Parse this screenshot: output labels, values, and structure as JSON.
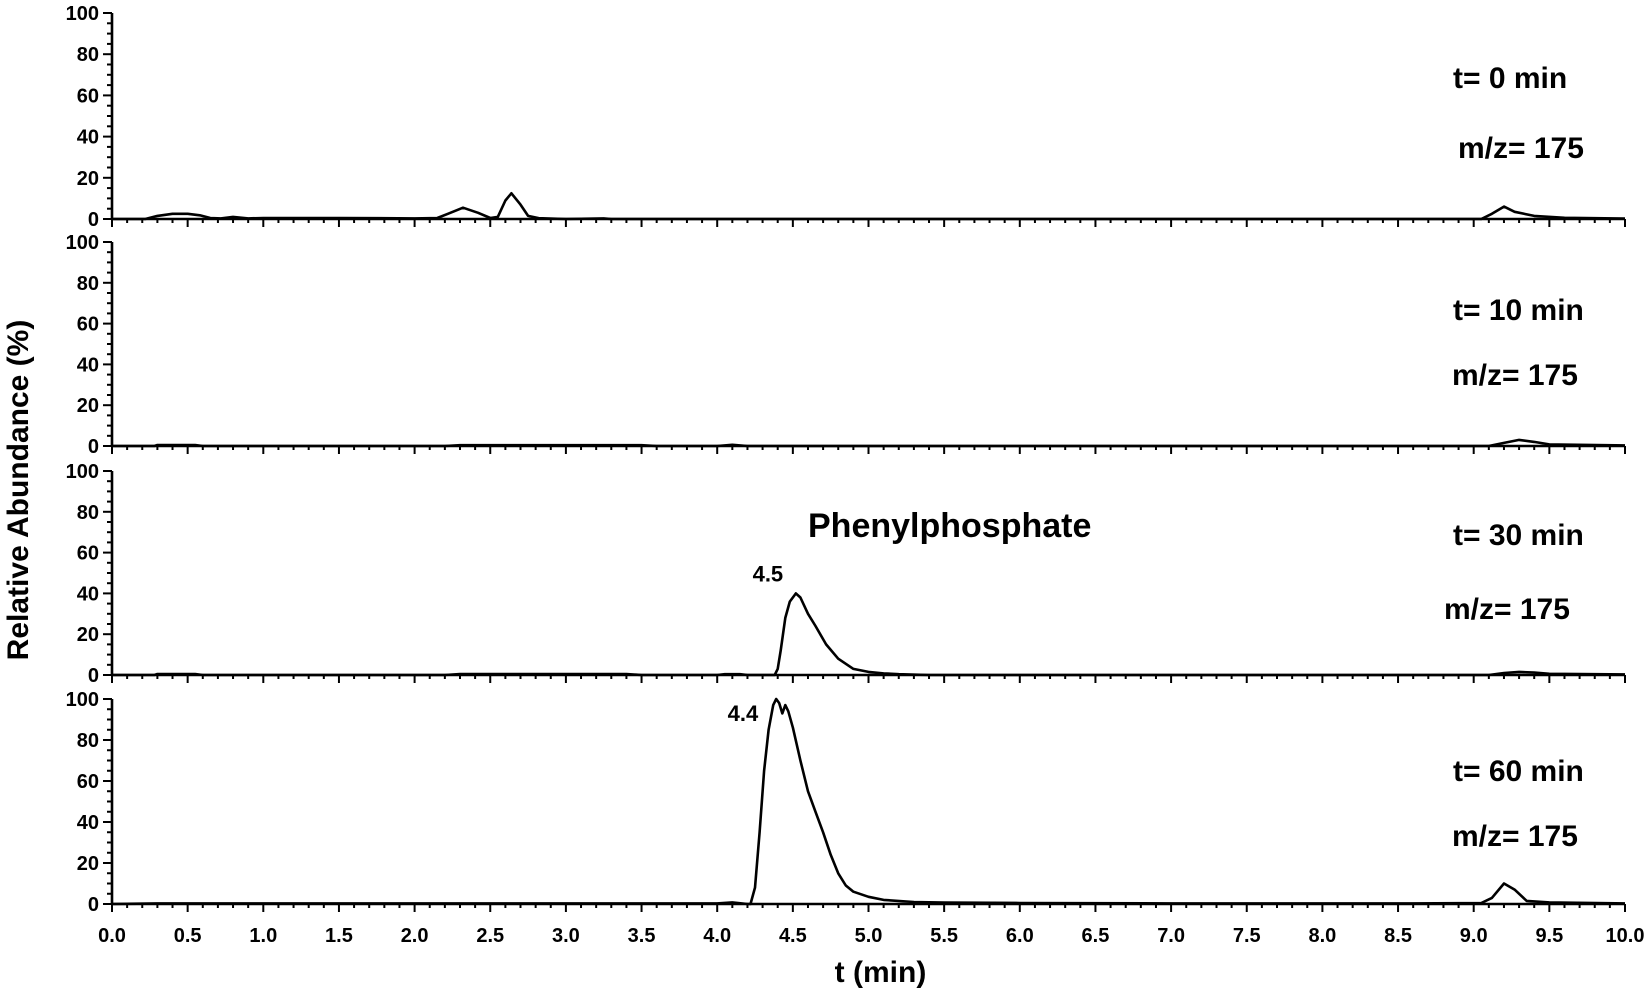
{
  "chart_data": {
    "type": "line",
    "xlabel": "t (min)",
    "ylabel": "Relative Abundance (%)",
    "xlim": [
      0.0,
      10.0
    ],
    "ylim": [
      0,
      100
    ],
    "x_ticks": [
      "0.0",
      "0.5",
      "1.0",
      "1.5",
      "2.0",
      "2.5",
      "3.0",
      "3.5",
      "4.0",
      "4.5",
      "5.0",
      "5.5",
      "6.0",
      "6.5",
      "7.0",
      "7.5",
      "8.0",
      "8.5",
      "9.0",
      "9.5",
      "10.0"
    ],
    "y_ticks": [
      "0",
      "20",
      "40",
      "60",
      "80",
      "100"
    ],
    "annotation": "Phenylphosphate",
    "series": [
      {
        "name": "t= 0 min",
        "mz": "m/z= 175",
        "peak_label": "",
        "points": [
          [
            0.0,
            0
          ],
          [
            0.22,
            0
          ],
          [
            0.3,
            1.5
          ],
          [
            0.4,
            2.5
          ],
          [
            0.5,
            2.5
          ],
          [
            0.58,
            1.8
          ],
          [
            0.65,
            0.5
          ],
          [
            0.72,
            0.3
          ],
          [
            0.8,
            1
          ],
          [
            0.9,
            0.3
          ],
          [
            1.0,
            0.5
          ],
          [
            1.5,
            0.5
          ],
          [
            2.0,
            0.3
          ],
          [
            2.15,
            0.5
          ],
          [
            2.22,
            2.5
          ],
          [
            2.32,
            5.5
          ],
          [
            2.42,
            3
          ],
          [
            2.5,
            0.5
          ],
          [
            2.55,
            1
          ],
          [
            2.6,
            9
          ],
          [
            2.64,
            12.5
          ],
          [
            2.7,
            7
          ],
          [
            2.75,
            1.5
          ],
          [
            2.82,
            0.4
          ],
          [
            3.0,
            0
          ],
          [
            3.25,
            0.3
          ],
          [
            3.3,
            0
          ],
          [
            9.05,
            0
          ],
          [
            9.12,
            2.5
          ],
          [
            9.2,
            6
          ],
          [
            9.27,
            3.5
          ],
          [
            9.4,
            1.5
          ],
          [
            9.6,
            0.6
          ],
          [
            9.8,
            0.4
          ],
          [
            10.0,
            0.2
          ]
        ]
      },
      {
        "name": "t= 10 min",
        "mz": "m/z= 175",
        "peak_label": "",
        "points": [
          [
            0.0,
            0
          ],
          [
            0.28,
            0
          ],
          [
            0.3,
            0.5
          ],
          [
            0.55,
            0.5
          ],
          [
            0.6,
            0
          ],
          [
            2.2,
            0
          ],
          [
            2.3,
            0.4
          ],
          [
            3.5,
            0.4
          ],
          [
            3.6,
            0
          ],
          [
            4.0,
            0
          ],
          [
            4.1,
            0.6
          ],
          [
            4.2,
            0
          ],
          [
            9.1,
            0
          ],
          [
            9.2,
            1.5
          ],
          [
            9.3,
            3
          ],
          [
            9.4,
            2
          ],
          [
            9.5,
            0.8
          ],
          [
            10.0,
            0.3
          ]
        ]
      },
      {
        "name": "t= 30 min",
        "mz": "m/z= 175",
        "peak_label": "4.5",
        "points": [
          [
            0.0,
            0
          ],
          [
            0.28,
            0
          ],
          [
            0.3,
            0.5
          ],
          [
            0.55,
            0.5
          ],
          [
            0.6,
            0
          ],
          [
            2.2,
            0
          ],
          [
            2.3,
            0.5
          ],
          [
            3.4,
            0.5
          ],
          [
            3.5,
            0
          ],
          [
            4.0,
            0
          ],
          [
            4.05,
            0.4
          ],
          [
            4.15,
            0.4
          ],
          [
            4.2,
            0
          ],
          [
            4.38,
            0
          ],
          [
            4.4,
            3
          ],
          [
            4.42,
            12
          ],
          [
            4.45,
            28
          ],
          [
            4.48,
            36
          ],
          [
            4.52,
            40
          ],
          [
            4.55,
            38
          ],
          [
            4.6,
            30
          ],
          [
            4.65,
            24
          ],
          [
            4.72,
            15
          ],
          [
            4.8,
            8
          ],
          [
            4.9,
            3
          ],
          [
            5.0,
            1.5
          ],
          [
            5.1,
            0.8
          ],
          [
            5.2,
            0.4
          ],
          [
            5.4,
            0
          ],
          [
            9.1,
            0
          ],
          [
            9.2,
            1
          ],
          [
            9.3,
            1.5
          ],
          [
            9.4,
            1.2
          ],
          [
            9.5,
            0.6
          ],
          [
            10.0,
            0.3
          ]
        ]
      },
      {
        "name": "t= 60 min",
        "mz": "m/z= 175",
        "peak_label": "4.4",
        "points": [
          [
            0.0,
            0
          ],
          [
            0.3,
            0.3
          ],
          [
            1.0,
            0.3
          ],
          [
            1.5,
            0.3
          ],
          [
            2.0,
            0.3
          ],
          [
            2.5,
            0.3
          ],
          [
            3.0,
            0.3
          ],
          [
            3.5,
            0.3
          ],
          [
            4.0,
            0.3
          ],
          [
            4.1,
            0.8
          ],
          [
            4.2,
            0
          ],
          [
            4.22,
            0
          ],
          [
            4.25,
            8
          ],
          [
            4.28,
            35
          ],
          [
            4.31,
            65
          ],
          [
            4.34,
            85
          ],
          [
            4.37,
            97
          ],
          [
            4.39,
            100
          ],
          [
            4.41,
            98
          ],
          [
            4.43,
            93
          ],
          [
            4.45,
            97
          ],
          [
            4.47,
            94
          ],
          [
            4.5,
            86
          ],
          [
            4.55,
            70
          ],
          [
            4.6,
            55
          ],
          [
            4.65,
            45
          ],
          [
            4.7,
            35
          ],
          [
            4.75,
            24
          ],
          [
            4.8,
            15
          ],
          [
            4.85,
            9
          ],
          [
            4.9,
            6
          ],
          [
            5.0,
            3.5
          ],
          [
            5.1,
            2
          ],
          [
            5.3,
            1
          ],
          [
            5.5,
            0.7
          ],
          [
            6.0,
            0.5
          ],
          [
            7.0,
            0.3
          ],
          [
            8.0,
            0.3
          ],
          [
            8.6,
            0.3
          ],
          [
            9.05,
            0.5
          ],
          [
            9.12,
            3
          ],
          [
            9.2,
            10
          ],
          [
            9.27,
            7
          ],
          [
            9.35,
            1.5
          ],
          [
            9.5,
            0.8
          ],
          [
            10.0,
            0.3
          ]
        ]
      }
    ]
  }
}
